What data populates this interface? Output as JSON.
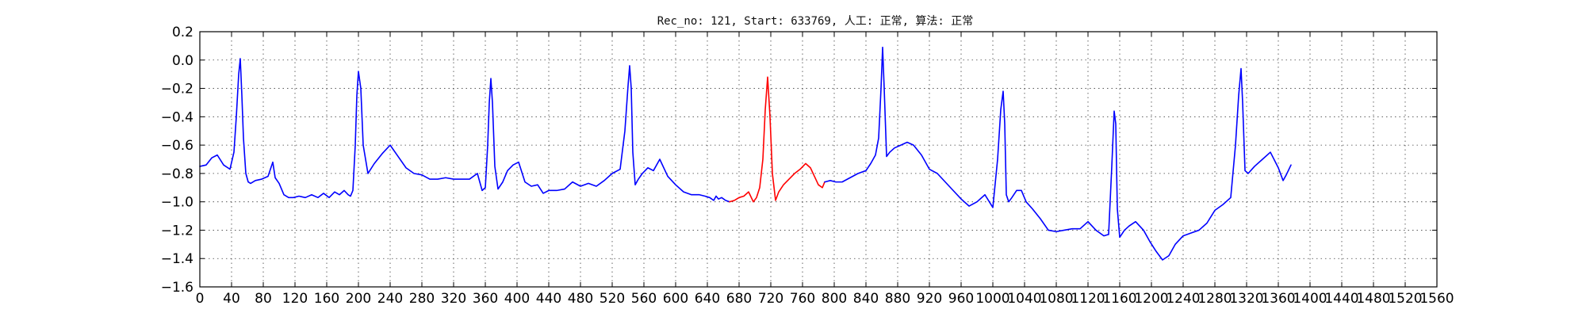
{
  "chart_data": {
    "type": "line",
    "title": "Rec_no: 121, Start: 633769, 人工: 正常, 算法: 正常",
    "xlabel": "",
    "ylabel": "",
    "xlim": [
      0,
      1560
    ],
    "ylim": [
      -1.6,
      0.2
    ],
    "grid": true,
    "grid_style": "dotted",
    "yticks": [
      0.2,
      0.0,
      -0.2,
      -0.4,
      -0.6,
      -0.8,
      -1.0,
      -1.2,
      -1.4,
      -1.6
    ],
    "ytick_labels": [
      "0.2",
      "0.0",
      "−0.2",
      "−0.4",
      "−0.6",
      "−0.8",
      "−1.0",
      "−1.2",
      "−1.4",
      "−1.6"
    ],
    "xticks": [
      0,
      40,
      80,
      120,
      160,
      200,
      240,
      280,
      320,
      360,
      400,
      440,
      480,
      520,
      560,
      600,
      640,
      680,
      720,
      760,
      800,
      840,
      880,
      920,
      960,
      1000,
      1040,
      1080,
      1120,
      1160,
      1200,
      1240,
      1280,
      1320,
      1360,
      1400,
      1440,
      1480,
      1520,
      1560
    ],
    "xtick_labels": [
      "0",
      "40",
      "80",
      "120",
      "160",
      "200",
      "240",
      "280",
      "320",
      "360",
      "400",
      "440",
      "480",
      "520",
      "560",
      "600",
      "640",
      "680",
      "720",
      "760",
      "800",
      "840",
      "880",
      "920",
      "960",
      "1000",
      "1040",
      "1080",
      "1120",
      "1160",
      "1200",
      "1240",
      "1280",
      "1320",
      "1360",
      "1400",
      "1440",
      "1480",
      "1520",
      "1560"
    ],
    "series": [
      {
        "color": "#0000ff",
        "x": [
          0,
          8,
          15,
          22,
          30,
          38,
          43,
          46,
          49,
          51,
          53,
          55,
          58,
          61,
          64,
          70,
          78,
          86,
          92,
          95,
          100,
          106,
          112,
          118,
          125,
          133,
          141,
          149,
          156,
          163,
          170,
          176,
          182,
          187,
          190,
          193,
          196,
          198,
          200,
          203,
          206,
          212,
          220,
          230,
          240,
          250,
          260,
          270,
          280,
          290,
          300,
          310,
          320,
          330,
          340,
          350,
          356,
          360,
          363,
          365,
          367,
          369,
          372,
          376,
          382,
          388,
          395,
          402,
          410,
          418,
          426,
          433,
          440,
          450,
          460,
          470,
          480,
          490,
          500,
          510,
          520,
          530,
          536,
          540,
          542,
          544,
          546,
          549,
          553,
          558,
          565,
          572,
          580,
          590,
          600,
          610,
          620,
          630,
          637,
          643,
          648,
          651,
          654,
          658,
          663,
          668
        ],
        "y": [
          -0.75,
          -0.74,
          -0.69,
          -0.67,
          -0.74,
          -0.77,
          -0.65,
          -0.4,
          -0.1,
          0.01,
          -0.25,
          -0.55,
          -0.8,
          -0.86,
          -0.87,
          -0.85,
          -0.84,
          -0.82,
          -0.72,
          -0.83,
          -0.87,
          -0.95,
          -0.97,
          -0.97,
          -0.96,
          -0.97,
          -0.95,
          -0.97,
          -0.94,
          -0.97,
          -0.93,
          -0.95,
          -0.92,
          -0.95,
          -0.96,
          -0.92,
          -0.6,
          -0.25,
          -0.08,
          -0.2,
          -0.6,
          -0.8,
          -0.73,
          -0.66,
          -0.6,
          -0.68,
          -0.76,
          -0.8,
          -0.81,
          -0.84,
          -0.84,
          -0.83,
          -0.84,
          -0.84,
          -0.84,
          -0.8,
          -0.92,
          -0.9,
          -0.6,
          -0.3,
          -0.13,
          -0.3,
          -0.75,
          -0.91,
          -0.86,
          -0.78,
          -0.74,
          -0.72,
          -0.86,
          -0.89,
          -0.88,
          -0.94,
          -0.92,
          -0.92,
          -0.91,
          -0.86,
          -0.89,
          -0.87,
          -0.89,
          -0.85,
          -0.8,
          -0.77,
          -0.5,
          -0.18,
          -0.04,
          -0.2,
          -0.65,
          -0.88,
          -0.84,
          -0.8,
          -0.76,
          -0.78,
          -0.7,
          -0.82,
          -0.88,
          -0.93,
          -0.95,
          -0.95,
          -0.96,
          -0.97,
          -0.99,
          -0.96,
          -0.98,
          -0.97,
          -0.99,
          -1.0
        ]
      },
      {
        "color": "#ff0000",
        "x": [
          668,
          674,
          680,
          686,
          692,
          698,
          702,
          706,
          710,
          713,
          716,
          719,
          722,
          726,
          730,
          736,
          743,
          750,
          757,
          764,
          770,
          775,
          780,
          785,
          788
        ],
        "y": [
          -1.0,
          -0.99,
          -0.97,
          -0.96,
          -0.93,
          -1.0,
          -0.97,
          -0.9,
          -0.7,
          -0.35,
          -0.12,
          -0.4,
          -0.8,
          -0.99,
          -0.93,
          -0.88,
          -0.84,
          -0.8,
          -0.77,
          -0.73,
          -0.76,
          -0.82,
          -0.88,
          -0.9,
          -0.86
        ]
      },
      {
        "color": "#0000ff",
        "x": [
          788,
          795,
          802,
          810,
          820,
          830,
          840,
          846,
          852,
          856,
          859,
          861,
          863,
          866,
          870,
          876,
          884,
          892,
          900,
          910,
          920,
          930,
          940,
          950,
          960,
          970,
          980,
          990,
          1000,
          1006,
          1010,
          1013,
          1015,
          1017,
          1020,
          1024,
          1030,
          1036,
          1042,
          1050,
          1060,
          1070,
          1080,
          1090,
          1100,
          1110,
          1120,
          1130,
          1140,
          1146,
          1150,
          1153,
          1155,
          1157,
          1160,
          1166,
          1172,
          1180,
          1190,
          1198,
          1206,
          1214,
          1222,
          1230,
          1240,
          1250,
          1260,
          1270,
          1280,
          1290,
          1300,
          1306,
          1310,
          1313,
          1315,
          1318,
          1322,
          1330,
          1340,
          1350,
          1360,
          1366,
          1370,
          1376
        ],
        "y": [
          -0.86,
          -0.85,
          -0.86,
          -0.86,
          -0.83,
          -0.8,
          -0.78,
          -0.73,
          -0.67,
          -0.55,
          -0.2,
          0.09,
          -0.2,
          -0.68,
          -0.65,
          -0.62,
          -0.6,
          -0.58,
          -0.6,
          -0.67,
          -0.77,
          -0.8,
          -0.86,
          -0.92,
          -0.98,
          -1.03,
          -1.0,
          -0.95,
          -1.04,
          -0.7,
          -0.35,
          -0.22,
          -0.45,
          -0.95,
          -1.0,
          -0.97,
          -0.92,
          -0.92,
          -1.0,
          -1.05,
          -1.12,
          -1.2,
          -1.21,
          -1.2,
          -1.19,
          -1.19,
          -1.14,
          -1.2,
          -1.24,
          -1.23,
          -0.75,
          -0.36,
          -0.45,
          -1.05,
          -1.25,
          -1.2,
          -1.17,
          -1.14,
          -1.2,
          -1.28,
          -1.35,
          -1.41,
          -1.38,
          -1.3,
          -1.24,
          -1.22,
          -1.2,
          -1.15,
          -1.06,
          -1.02,
          -0.97,
          -0.6,
          -0.25,
          -0.06,
          -0.3,
          -0.78,
          -0.8,
          -0.75,
          -0.7,
          -0.65,
          -0.76,
          -0.85,
          -0.81,
          -0.74
        ]
      }
    ]
  }
}
